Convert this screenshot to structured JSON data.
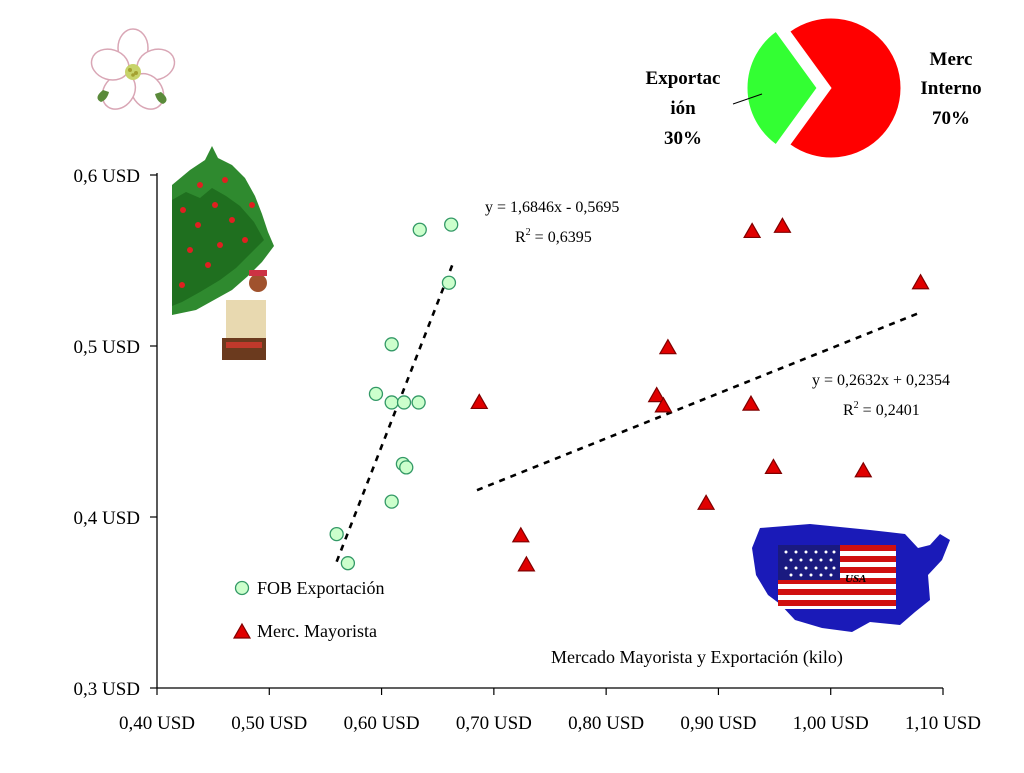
{
  "chart_data": [
    {
      "type": "scatter",
      "title": "Mercado Mayorista y Exportación (kilo)",
      "xlabel": "",
      "ylabel": "",
      "xlim": [
        0.4,
        1.1
      ],
      "ylim": [
        0.3,
        0.6
      ],
      "x_ticks": [
        0.4,
        0.5,
        0.6,
        0.7,
        0.8,
        0.9,
        1.0,
        1.1
      ],
      "x_tick_labels": [
        "0,40 USD",
        "0,50 USD",
        "0,60 USD",
        "0,70 USD",
        "0,80 USD",
        "0,90 USD",
        "1,00 USD",
        "1,10 USD"
      ],
      "y_ticks": [
        0.3,
        0.4,
        0.5,
        0.6
      ],
      "y_tick_labels": [
        "0,3 USD",
        "0,4 USD",
        "0,5 USD",
        "0,6 USD"
      ],
      "grid": false,
      "legend_position": "bottom-left",
      "series": [
        {
          "name": "FOB Exportación",
          "marker": "circle",
          "color": "#ccffcc",
          "edge_color": "#339966",
          "points": [
            [
              0.634,
              0.568
            ],
            [
              0.662,
              0.571
            ],
            [
              0.66,
              0.537
            ],
            [
              0.609,
              0.501
            ],
            [
              0.595,
              0.472
            ],
            [
              0.609,
              0.467
            ],
            [
              0.62,
              0.467
            ],
            [
              0.633,
              0.467
            ],
            [
              0.619,
              0.431
            ],
            [
              0.622,
              0.429
            ],
            [
              0.609,
              0.409
            ],
            [
              0.56,
              0.39
            ],
            [
              0.57,
              0.373
            ]
          ],
          "trendline": {
            "equation": "y = 1,6846x - 0,5695",
            "r2_prefix": "R",
            "r2_exp": "2",
            "r2_value": " = 0,6395",
            "slope": 1.6846,
            "intercept": -0.5695,
            "x_range": [
              0.56,
              0.664
            ]
          }
        },
        {
          "name": "Merc. Mayorista",
          "marker": "triangle",
          "color": "#e00000",
          "edge_color": "#800000",
          "points": [
            [
              0.93,
              0.567
            ],
            [
              0.957,
              0.57
            ],
            [
              1.08,
              0.537
            ],
            [
              0.855,
              0.499
            ],
            [
              0.687,
              0.467
            ],
            [
              0.845,
              0.471
            ],
            [
              0.851,
              0.465
            ],
            [
              0.929,
              0.466
            ],
            [
              0.949,
              0.429
            ],
            [
              1.029,
              0.427
            ],
            [
              0.889,
              0.408
            ],
            [
              0.724,
              0.389
            ],
            [
              0.729,
              0.372
            ]
          ],
          "trendline": {
            "equation": "y = 0,2632x + 0,2354",
            "r2_prefix": "R",
            "r2_exp": "2",
            "r2_value": " = 0,2401",
            "slope": 0.2632,
            "intercept": 0.2354,
            "x_range": [
              0.685,
              1.08
            ]
          }
        }
      ]
    },
    {
      "type": "pie",
      "slices": [
        {
          "label_lines": [
            "Merc",
            "Interno",
            "70%"
          ],
          "value": 70,
          "color": "#ff0000"
        },
        {
          "label_lines": [
            "Exportac",
            "ión",
            "30%"
          ],
          "value": 30,
          "color": "#33ff33",
          "exploded": true
        }
      ],
      "legend": false
    }
  ],
  "icons": {
    "flower": "apple-blossom-icon",
    "picker": "apple-picker-tree-icon",
    "usa": "usa-flag-map-icon"
  },
  "colors": {
    "trendline": "#000000",
    "axis": "#000000"
  }
}
